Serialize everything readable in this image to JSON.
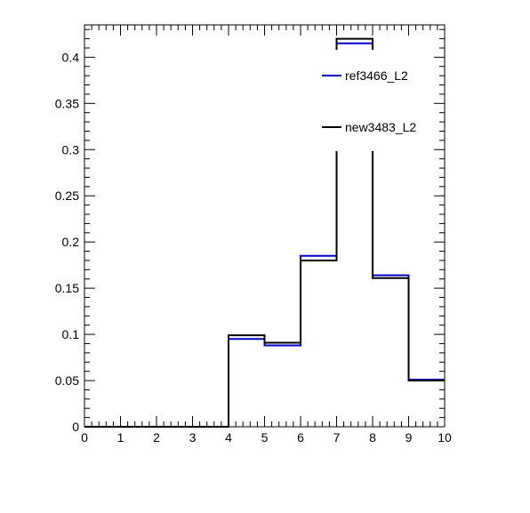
{
  "chart_data": {
    "type": "step",
    "title": "",
    "xlabel": "",
    "ylabel": "",
    "xlim": [
      0,
      10
    ],
    "ylim": [
      0,
      0.435
    ],
    "grid": false,
    "legend_placement": "top-right",
    "x_ticks": [
      0,
      1,
      2,
      3,
      4,
      5,
      6,
      7,
      8,
      9,
      10
    ],
    "x_tick_labels": [
      "0",
      "1",
      "2",
      "3",
      "4",
      "5",
      "6",
      "7",
      "8",
      "9",
      "10"
    ],
    "y_ticks": [
      0,
      0.05,
      0.1,
      0.15,
      0.2,
      0.25,
      0.3,
      0.35,
      0.4
    ],
    "y_tick_labels": [
      "0",
      "0.05",
      "0.1",
      "0.15",
      "0.2",
      "0.25",
      "0.3",
      "0.35",
      "0.4"
    ],
    "bin_edges": [
      0,
      1,
      2,
      3,
      4,
      5,
      6,
      7,
      8,
      9,
      10
    ],
    "series": [
      {
        "name": "ref3466_L2",
        "color": "#0000cc",
        "values": [
          0,
          0,
          0,
          0,
          0.095,
          0.088,
          0.185,
          0.415,
          0.164,
          0.051
        ]
      },
      {
        "name": "new3483_L2",
        "color": "#000000",
        "values": [
          0,
          0,
          0,
          0,
          0.099,
          0.091,
          0.18,
          0.42,
          0.161,
          0.05
        ]
      }
    ]
  }
}
